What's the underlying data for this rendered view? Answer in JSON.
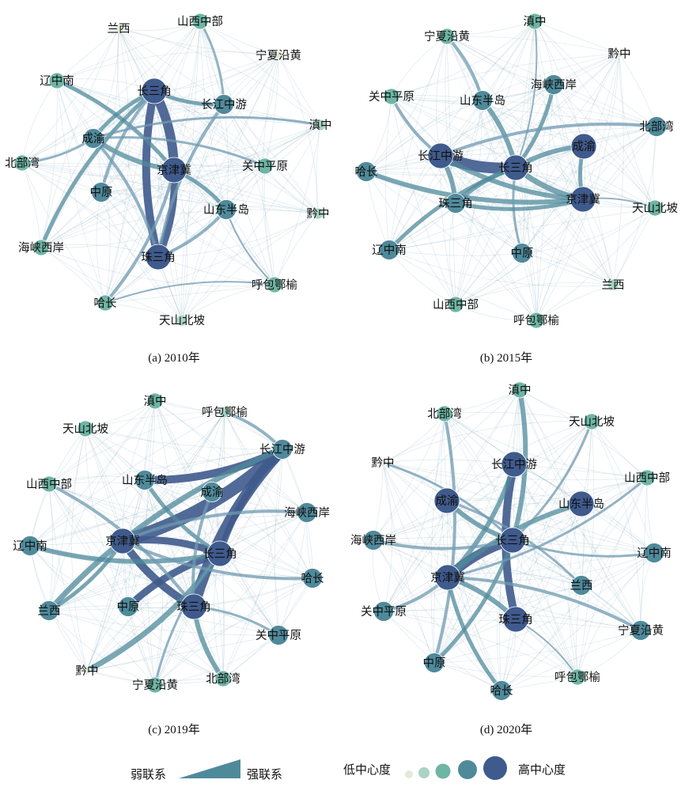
{
  "colors": {
    "low": "#dfead8",
    "mid_low": "#a9d3c3",
    "mid": "#6fb5a5",
    "mid_high": "#4f8a9b",
    "high": "#3f5a8c",
    "edge": "#6f9ab0"
  },
  "panels": [
    {
      "id": "a",
      "caption": "(a) 2010年",
      "nodes": [
        {
          "name": "长三角",
          "level": 5
        },
        {
          "name": "京津冀",
          "level": 5
        },
        {
          "name": "珠三角",
          "level": 5
        },
        {
          "name": "长江中游",
          "level": 4
        },
        {
          "name": "成渝",
          "level": 4
        },
        {
          "name": "山东半岛",
          "level": 4
        },
        {
          "name": "中原",
          "level": 4
        },
        {
          "name": "关中平原",
          "level": 3
        },
        {
          "name": "辽中南",
          "level": 3
        },
        {
          "name": "哈长",
          "level": 3
        },
        {
          "name": "海峡西岸",
          "level": 3
        },
        {
          "name": "北部湾",
          "level": 3
        },
        {
          "name": "山西中部",
          "level": 3
        },
        {
          "name": "呼包鄂榆",
          "level": 3
        },
        {
          "name": "滇中",
          "level": 2
        },
        {
          "name": "黔中",
          "level": 2
        },
        {
          "name": "天山北坡",
          "level": 2
        },
        {
          "name": "兰西",
          "level": 1
        },
        {
          "name": "宁夏沿黄",
          "level": 1
        }
      ]
    },
    {
      "id": "b",
      "caption": "(b) 2015年",
      "nodes": [
        {
          "name": "长三角",
          "level": 5
        },
        {
          "name": "长江中游",
          "level": 5
        },
        {
          "name": "京津冀",
          "level": 5
        },
        {
          "name": "成渝",
          "level": 5
        },
        {
          "name": "珠三角",
          "level": 4
        },
        {
          "name": "山东半岛",
          "level": 4
        },
        {
          "name": "海峡西岸",
          "level": 4
        },
        {
          "name": "北部湾",
          "level": 4
        },
        {
          "name": "哈长",
          "level": 4
        },
        {
          "name": "辽中南",
          "level": 4
        },
        {
          "name": "中原",
          "level": 4
        },
        {
          "name": "关中平原",
          "level": 3
        },
        {
          "name": "山西中部",
          "level": 3
        },
        {
          "name": "天山北坡",
          "level": 3
        },
        {
          "name": "滇中",
          "level": 3
        },
        {
          "name": "呼包鄂榆",
          "level": 3
        },
        {
          "name": "宁夏沿黄",
          "level": 3
        },
        {
          "name": "兰西",
          "level": 2
        },
        {
          "name": "黔中",
          "level": 1
        }
      ]
    },
    {
      "id": "c",
      "caption": "(c) 2019年",
      "nodes": [
        {
          "name": "长三角",
          "level": 5
        },
        {
          "name": "京津冀",
          "level": 5
        },
        {
          "name": "珠三角",
          "level": 5
        },
        {
          "name": "长江中游",
          "level": 4
        },
        {
          "name": "山东半岛",
          "level": 4
        },
        {
          "name": "中原",
          "level": 4
        },
        {
          "name": "成渝",
          "level": 4
        },
        {
          "name": "海峡西岸",
          "level": 4
        },
        {
          "name": "哈长",
          "level": 4
        },
        {
          "name": "关中平原",
          "level": 4
        },
        {
          "name": "辽中南",
          "level": 4
        },
        {
          "name": "兰西",
          "level": 4
        },
        {
          "name": "山西中部",
          "level": 3
        },
        {
          "name": "北部湾",
          "level": 3
        },
        {
          "name": "宁夏沿黄",
          "level": 3
        },
        {
          "name": "天山北坡",
          "level": 3
        },
        {
          "name": "滇中",
          "level": 3
        },
        {
          "name": "呼包鄂榆",
          "level": 2
        },
        {
          "name": "黔中",
          "level": 1
        }
      ]
    },
    {
      "id": "d",
      "caption": "(d) 2020年",
      "nodes": [
        {
          "name": "长三角",
          "level": 5
        },
        {
          "name": "京津冀",
          "level": 5
        },
        {
          "name": "长江中游",
          "level": 5
        },
        {
          "name": "珠三角",
          "level": 5
        },
        {
          "name": "山东半岛",
          "level": 5
        },
        {
          "name": "成渝",
          "level": 5
        },
        {
          "name": "中原",
          "level": 4
        },
        {
          "name": "海峡西岸",
          "level": 4
        },
        {
          "name": "哈长",
          "level": 4
        },
        {
          "name": "辽中南",
          "level": 4
        },
        {
          "name": "关中平原",
          "level": 4
        },
        {
          "name": "兰西",
          "level": 4
        },
        {
          "name": "宁夏沿黄",
          "level": 4
        },
        {
          "name": "北部湾",
          "level": 3
        },
        {
          "name": "滇中",
          "level": 3
        },
        {
          "name": "天山北坡",
          "level": 3
        },
        {
          "name": "山西中部",
          "level": 3
        },
        {
          "name": "呼包鄂榆",
          "level": 3
        },
        {
          "name": "黔中",
          "level": 1
        }
      ]
    }
  ],
  "legend": {
    "weak_label": "弱联系",
    "strong_label": "强联系",
    "low_label": "低中心度",
    "high_label": "高中心度"
  }
}
